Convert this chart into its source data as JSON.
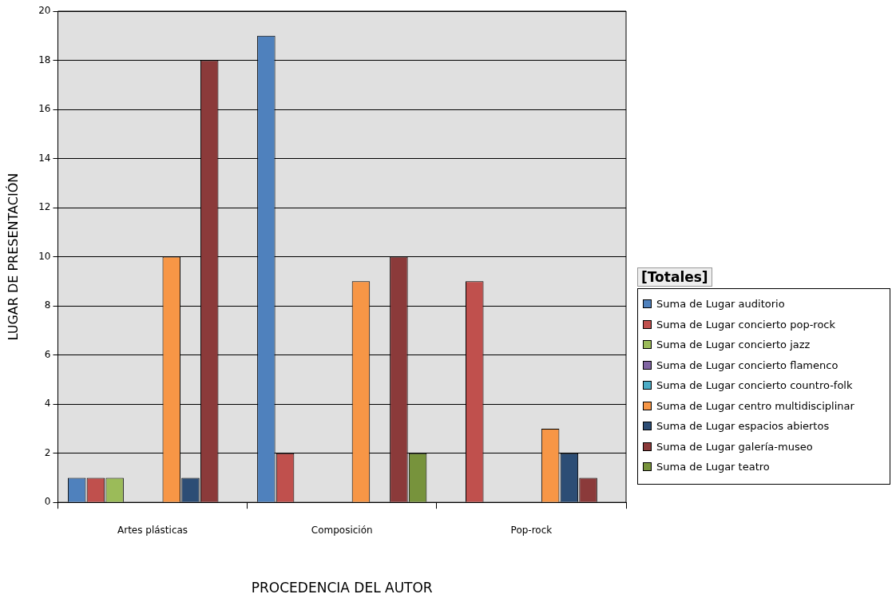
{
  "chart_data": {
    "type": "bar",
    "xlabel": "PROCEDENCIA DEL AUTOR",
    "ylabel": "LUGAR DE PRESENTACIÓN",
    "legend_title": "[Totales]",
    "legend": "right",
    "grid": "y",
    "categories": [
      "Artes plásticas",
      "Composición",
      "Pop-rock"
    ],
    "ylim": [
      0,
      20
    ],
    "yticks": [
      0,
      2,
      4,
      6,
      8,
      10,
      12,
      14,
      16,
      18,
      20
    ],
    "series": [
      {
        "name": "Suma de Lugar auditorio",
        "color": "#4f81bd",
        "values": [
          1,
          19,
          null
        ]
      },
      {
        "name": "Suma de Lugar concierto pop-rock",
        "color": "#c0504d",
        "values": [
          1,
          2,
          9
        ]
      },
      {
        "name": "Suma de Lugar concierto jazz",
        "color": "#9bbb59",
        "values": [
          1,
          null,
          null
        ]
      },
      {
        "name": "Suma de Lugar concierto flamenco",
        "color": "#8064a2",
        "values": [
          null,
          null,
          null
        ]
      },
      {
        "name": "Suma de Lugar concierto countro-folk",
        "color": "#4bacc6",
        "values": [
          null,
          null,
          null
        ]
      },
      {
        "name": "Suma de Lugar centro multidisciplinar",
        "color": "#f79646",
        "values": [
          10,
          9,
          3
        ]
      },
      {
        "name": "Suma de Lugar espacios abiertos",
        "color": "#2c4d75",
        "values": [
          1,
          null,
          2
        ]
      },
      {
        "name": "Suma de Lugar galería-museo",
        "color": "#8b3a3a",
        "values": [
          18,
          10,
          1
        ]
      },
      {
        "name": "Suma de Lugar teatro",
        "color": "#77933c",
        "values": [
          null,
          2,
          null
        ]
      }
    ]
  }
}
